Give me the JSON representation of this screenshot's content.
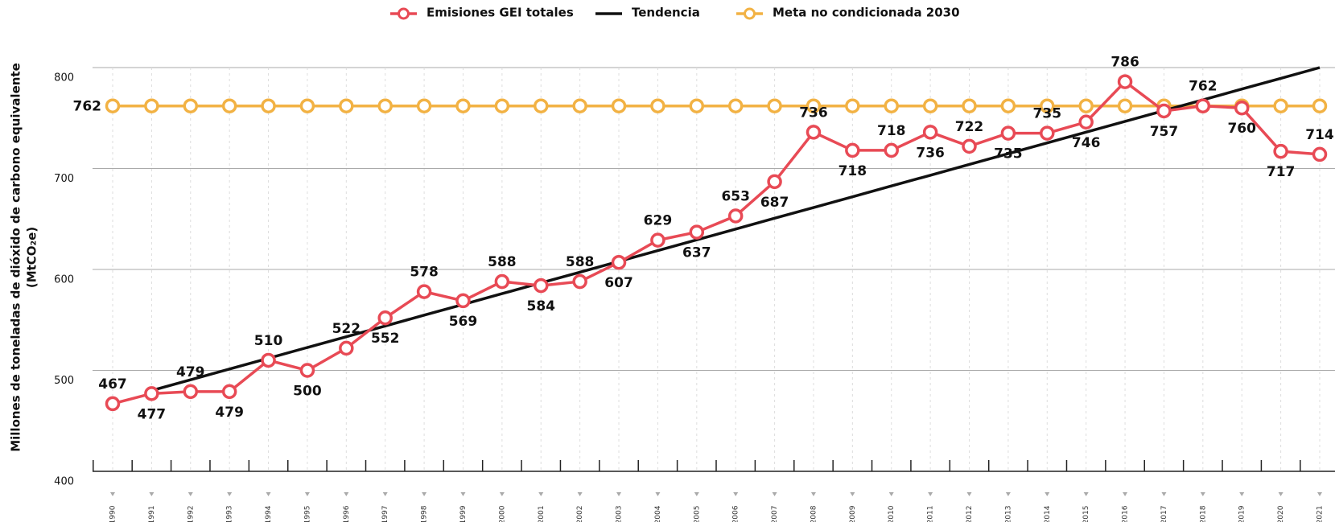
{
  "chart_data": {
    "type": "line",
    "y_label": [
      "Millones de toneladas de dióxido de carbono equivalente",
      "(MtCO₂e)"
    ],
    "categories": [
      "1990",
      "1991",
      "1992",
      "1993",
      "1994",
      "1995",
      "1996",
      "1997",
      "1998",
      "1999",
      "2000",
      "2001",
      "2002",
      "2003",
      "2004",
      "2005",
      "2006",
      "2007",
      "2008",
      "2009",
      "2010",
      "2011",
      "2012",
      "2013",
      "2014",
      "2015",
      "2016",
      "2017",
      "2018",
      "2019",
      "2020",
      "2021"
    ],
    "series": [
      {
        "name": "Emisiones GEI totales",
        "color": "#e84a55",
        "markers": true,
        "data_labels": "all",
        "values": [
          467,
          477,
          479,
          479,
          510,
          500,
          522,
          552,
          578,
          569,
          588,
          584,
          588,
          607,
          629,
          637,
          653,
          687,
          736,
          718,
          718,
          736,
          722,
          735,
          735,
          746,
          786,
          757,
          762,
          760,
          717,
          714
        ]
      },
      {
        "name": "Tendencia",
        "color": "#111111",
        "markers": false,
        "values": [
          null,
          480.0,
          490.7,
          501.3,
          512.0,
          522.7,
          533.3,
          544.0,
          554.7,
          565.3,
          576.0,
          586.7,
          597.3,
          608.0,
          618.7,
          629.3,
          640.0,
          650.7,
          661.3,
          672.0,
          682.7,
          693.3,
          704.0,
          714.7,
          725.3,
          736.0,
          746.7,
          757.3,
          768.0,
          778.7,
          789.3,
          800.0
        ]
      },
      {
        "name": "Meta no condicionada 2030",
        "color": "#f2b244",
        "markers": true,
        "data_labels": "first",
        "values": [
          762,
          762,
          762,
          762,
          762,
          762,
          762,
          762,
          762,
          762,
          762,
          762,
          762,
          762,
          762,
          762,
          762,
          762,
          762,
          762,
          762,
          762,
          762,
          762,
          762,
          762,
          762,
          762,
          762,
          762,
          762,
          762
        ]
      }
    ],
    "ylim": [
      400,
      800
    ],
    "yticks": [
      400,
      500,
      600,
      700,
      800
    ],
    "grid": true,
    "legend": "top"
  }
}
